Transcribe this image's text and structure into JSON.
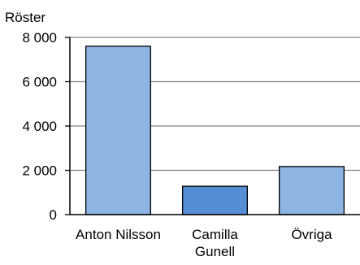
{
  "chart_data": {
    "type": "bar",
    "ylabel": "Röster",
    "categories": [
      [
        "Anton Nilsson"
      ],
      [
        "Camilla",
        "Gunell"
      ],
      [
        "Övriga"
      ]
    ],
    "values": [
      7600,
      1280,
      2170
    ],
    "bar_colors": [
      "#8db4e2",
      "#558ed5",
      "#8db4e2"
    ],
    "ylim": [
      0,
      8000
    ],
    "yticks": [
      0,
      2000,
      4000,
      6000,
      8000
    ],
    "ytick_labels": [
      "0",
      "2 000",
      "4 000",
      "6 000",
      "8 000"
    ],
    "grid": true,
    "grid_color": "#808080",
    "legend": "none"
  }
}
